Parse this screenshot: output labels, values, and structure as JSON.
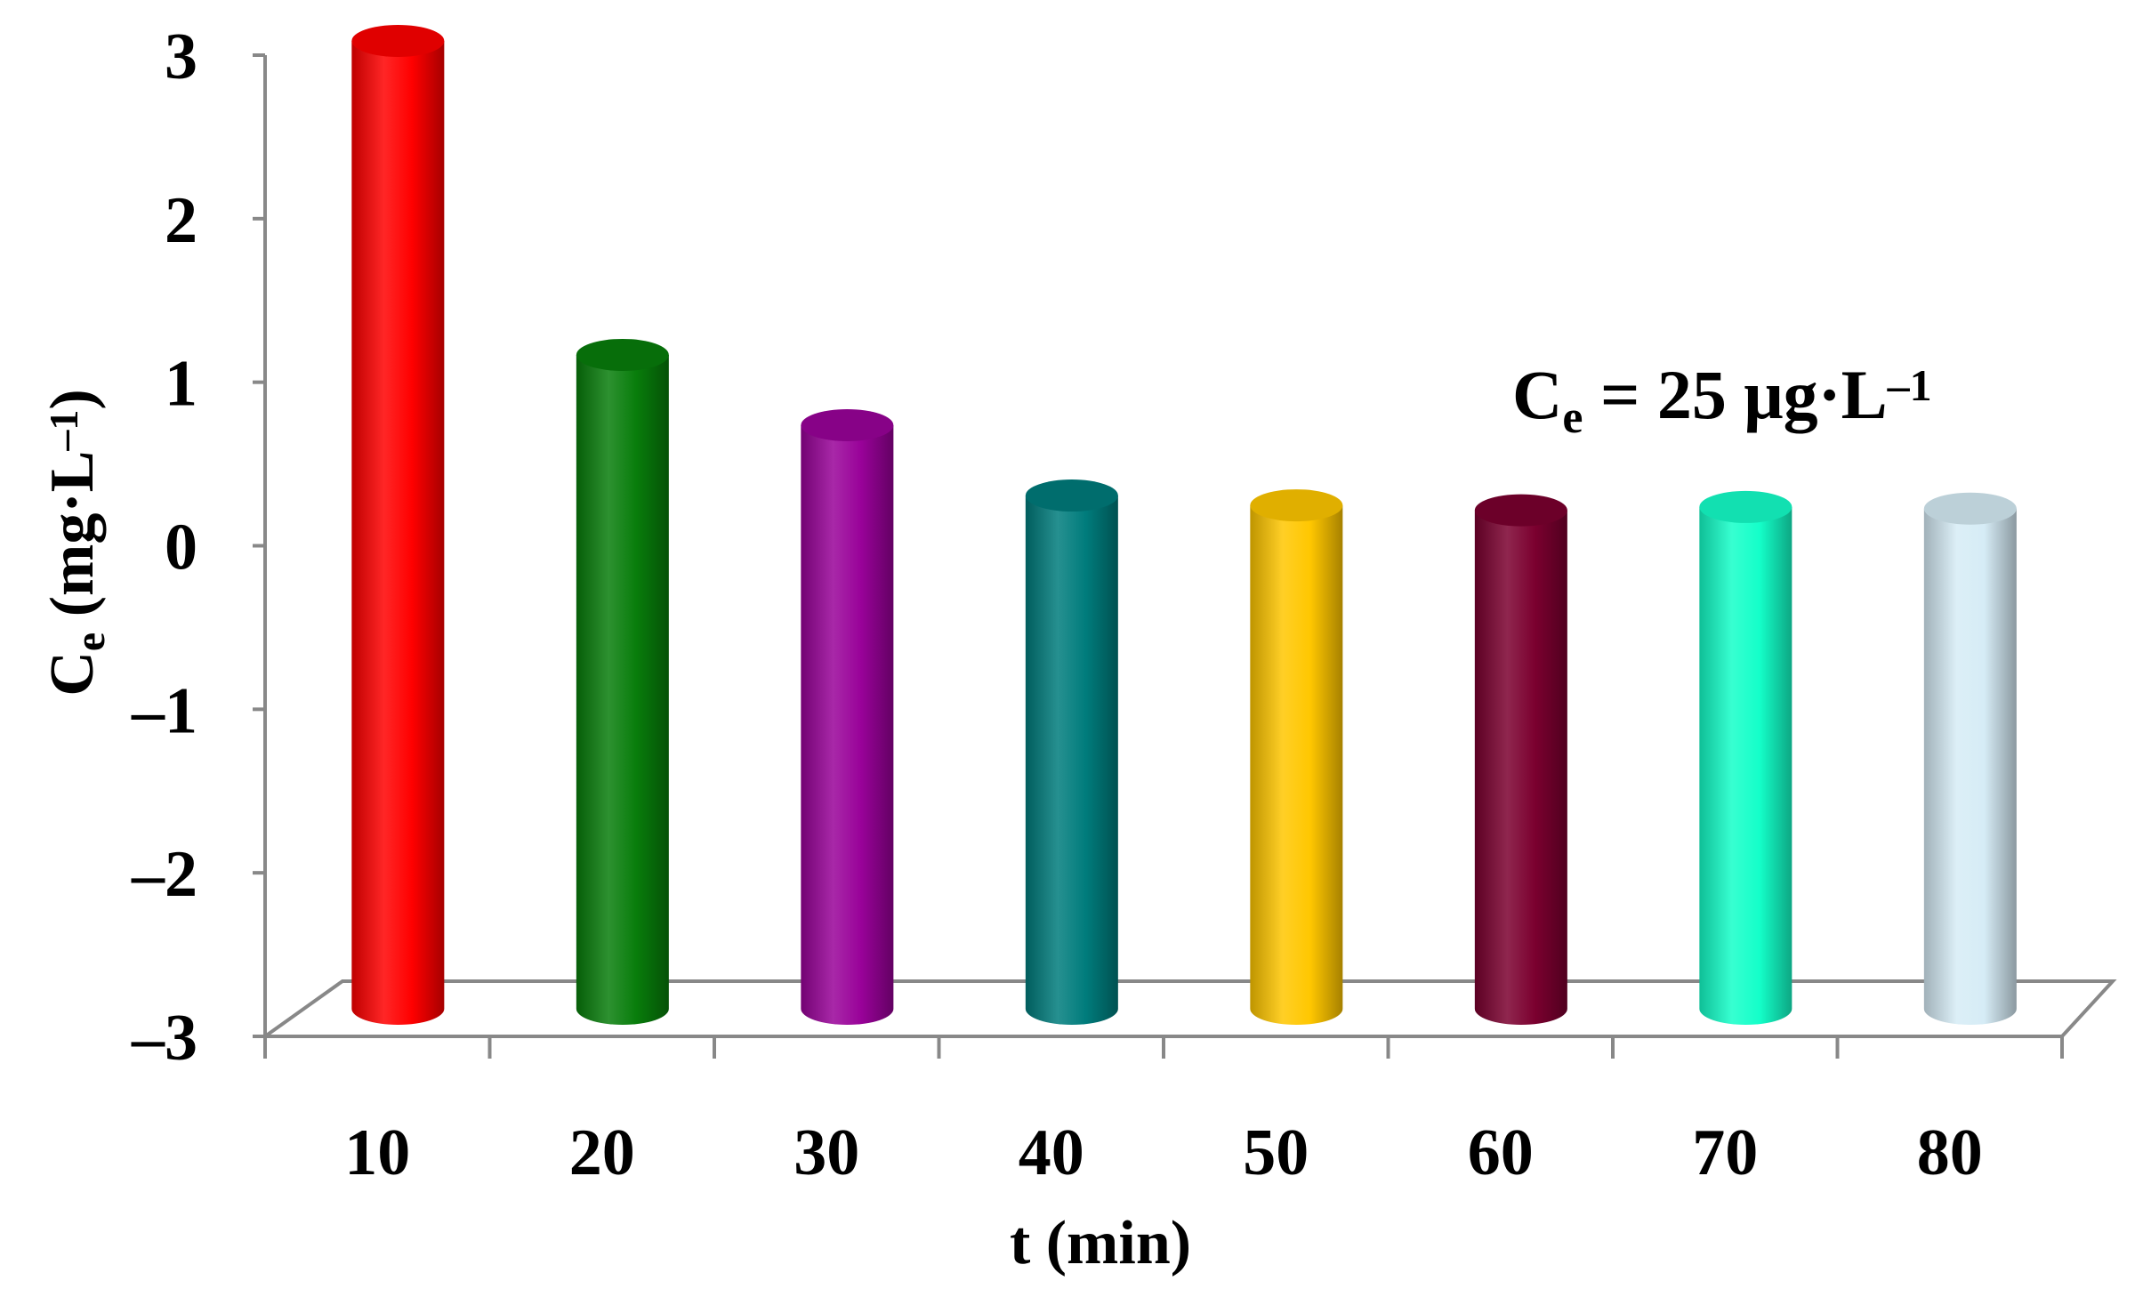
{
  "chart_data": {
    "type": "bar",
    "categories": [
      "10",
      "20",
      "30",
      "40",
      "50",
      "60",
      "70",
      "80"
    ],
    "values": [
      3.0,
      1.08,
      0.65,
      0.22,
      0.16,
      0.13,
      0.15,
      0.14
    ],
    "colors": [
      "#ff0000",
      "#087d0b",
      "#990299",
      "#007c7c",
      "#ffc700",
      "#7b002f",
      "#14ffc9",
      "#d6ecf6"
    ],
    "ylim": [
      -3,
      3
    ],
    "yticks": [
      "3",
      "2",
      "1",
      "0",
      "–1",
      "–2",
      "–3"
    ],
    "xlabel": "t (min)",
    "ylabel": {
      "main": "C",
      "sub": "e",
      "units": " (mg·L",
      "sup": "–1",
      "close": ")"
    },
    "annotation": {
      "main": "C",
      "sub": "e",
      "rest": " = 25 μg·L",
      "sup": "–1"
    },
    "grid": false,
    "legend": "none",
    "style": "3d-cylinder"
  }
}
